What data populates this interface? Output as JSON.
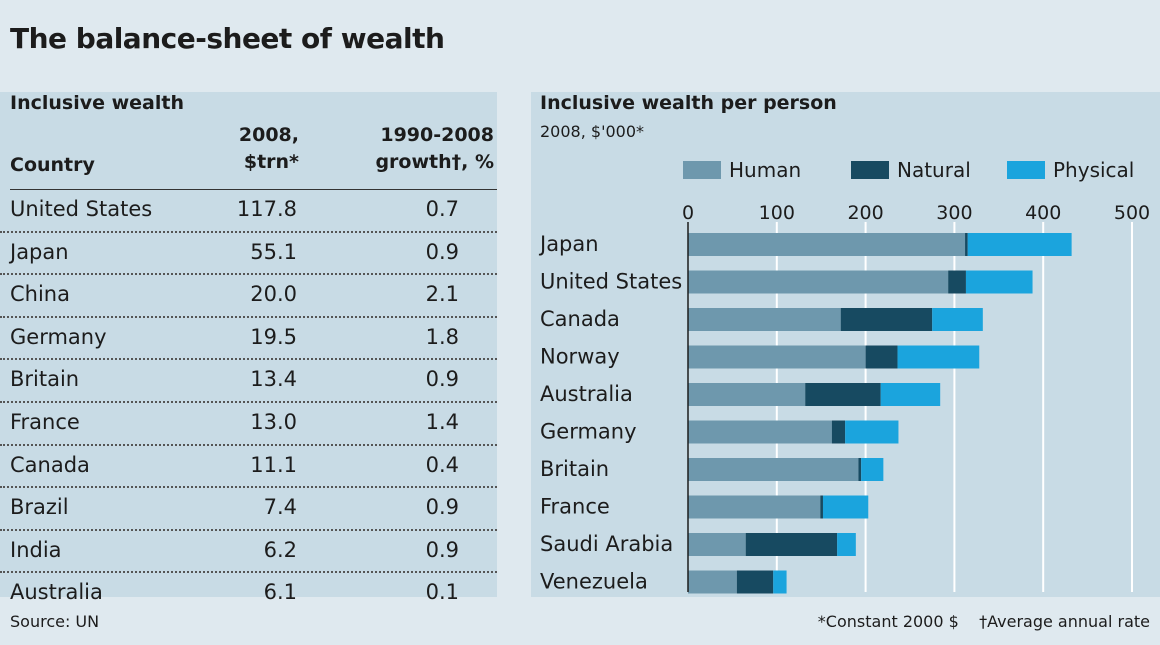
{
  "title": "The balance-sheet of wealth",
  "table": {
    "heading": "Inclusive wealth",
    "col_country": "Country",
    "col_2008_l1": "2008,",
    "col_2008_l2": "$trn*",
    "col_growth_l1": "1990-2008",
    "col_growth_l2": "growth†, %",
    "rows": [
      {
        "country": "United States",
        "value": "117.8",
        "growth": "0.7"
      },
      {
        "country": "Japan",
        "value": "55.1",
        "growth": "0.9"
      },
      {
        "country": "China",
        "value": "20.0",
        "growth": "2.1"
      },
      {
        "country": "Germany",
        "value": "19.5",
        "growth": "1.8"
      },
      {
        "country": "Britain",
        "value": "13.4",
        "growth": "0.9"
      },
      {
        "country": "France",
        "value": "13.0",
        "growth": "1.4"
      },
      {
        "country": "Canada",
        "value": "11.1",
        "growth": "0.4"
      },
      {
        "country": "Brazil",
        "value": "7.4",
        "growth": "0.9"
      },
      {
        "country": "India",
        "value": "6.2",
        "growth": "0.9"
      },
      {
        "country": "Australia",
        "value": "6.1",
        "growth": "0.1"
      }
    ]
  },
  "chart_data": {
    "type": "bar",
    "orientation": "horizontal",
    "stacked": true,
    "title": "Inclusive wealth per person",
    "subtitle": "2008, $'000*",
    "categories": [
      "Japan",
      "United States",
      "Canada",
      "Norway",
      "Australia",
      "Germany",
      "Britain",
      "France",
      "Saudi Arabia",
      "Venezuela"
    ],
    "series": [
      {
        "name": "Human",
        "color": "#6e98ad",
        "values": [
          312,
          293,
          172,
          200,
          132,
          162,
          192,
          149,
          65,
          55
        ]
      },
      {
        "name": "Natural",
        "color": "#174a61",
        "values": [
          3,
          20,
          103,
          36,
          85,
          15,
          3,
          3,
          103,
          41
        ]
      },
      {
        "name": "Physical",
        "color": "#1ba4dd",
        "values": [
          117,
          75,
          57,
          92,
          67,
          60,
          25,
          51,
          21,
          15
        ]
      }
    ],
    "xlim": [
      0,
      500
    ],
    "xticks": [
      "0",
      "100",
      "200",
      "300",
      "400",
      "500"
    ],
    "legend": "top"
  },
  "footer": {
    "source": "Source: UN",
    "note1": "*Constant 2000 $",
    "note2": "†Average annual rate"
  }
}
